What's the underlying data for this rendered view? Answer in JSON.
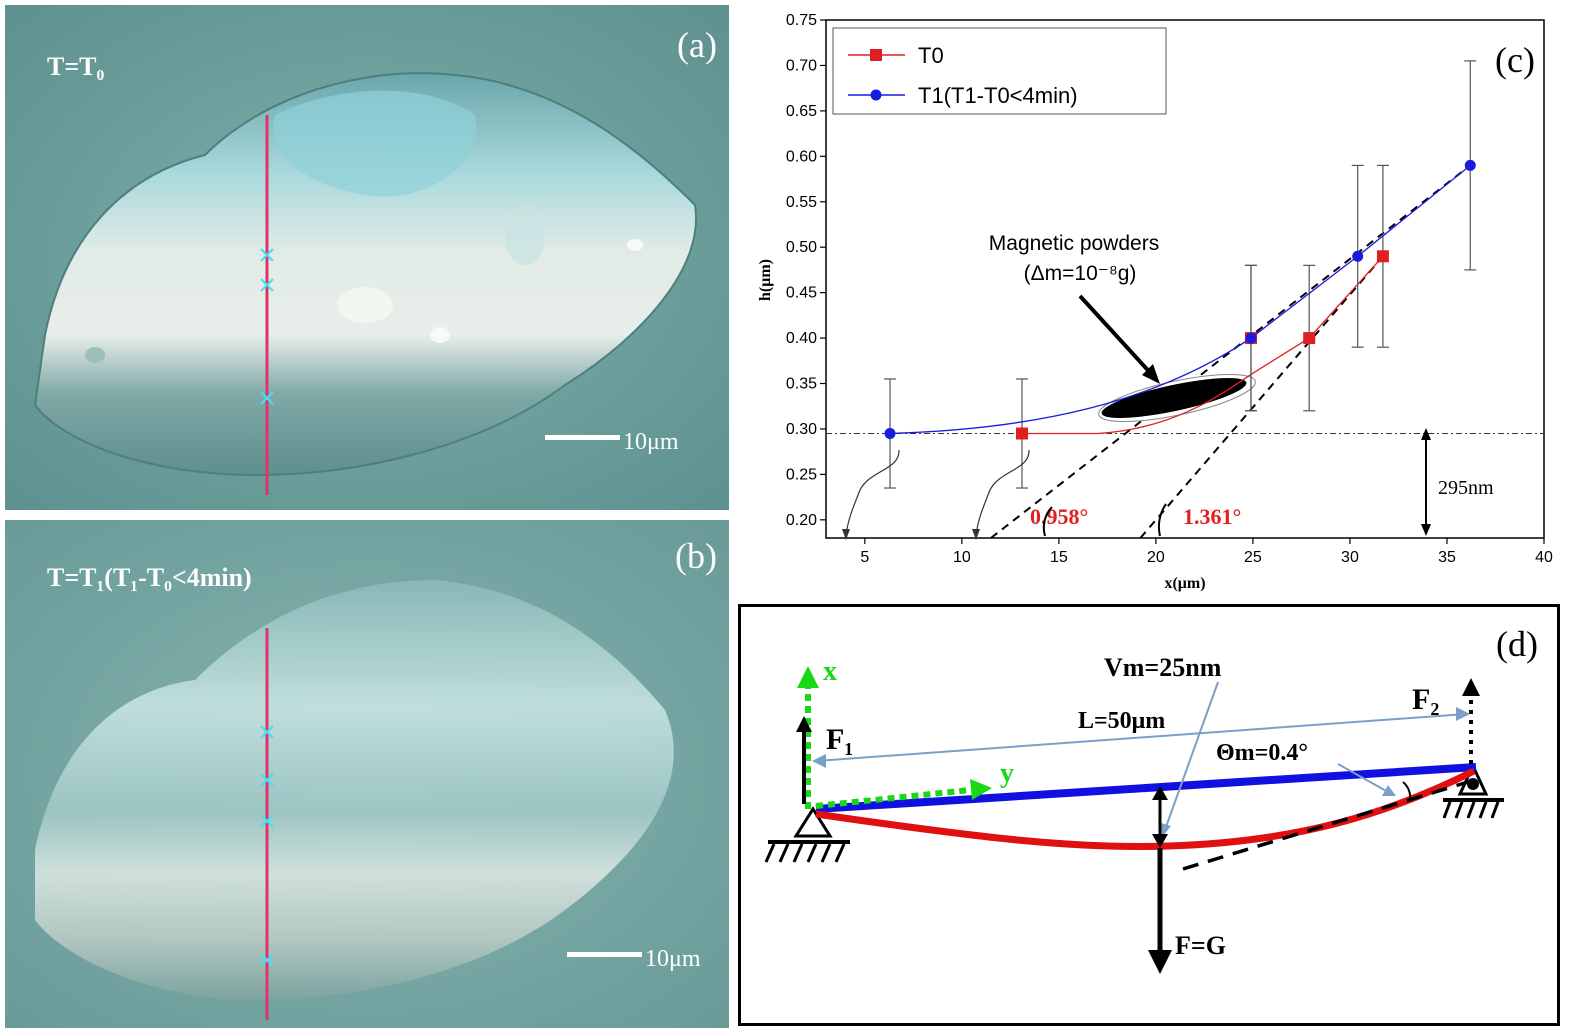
{
  "panel_a": {
    "label": "(a)",
    "time_label": "T=T₀",
    "scale_bar": "10μm"
  },
  "panel_b": {
    "label": "(b)",
    "time_label": "T=T₁(T₁-T₀<4min)",
    "scale_bar": "10μm"
  },
  "panel_c": {
    "label": "(c)",
    "annotation_powder": "Magnetic powders",
    "annotation_mass": "(Δm=10⁻⁸g)",
    "angle_1": "0.958°",
    "angle_2": "1.361°",
    "height_note": "295nm"
  },
  "panel_d": {
    "label": "(d)",
    "axis_x": "x",
    "axis_y": "y",
    "f1": "F₁",
    "f2": "F₂",
    "length": "L=50μm",
    "vm": "Vm=25nm",
    "theta": "Θm=0.4°",
    "force": "F=G"
  },
  "chart_data": {
    "type": "line",
    "xlabel": "x(μm)",
    "ylabel": "h(μm)",
    "xlim": [
      3,
      40
    ],
    "ylim": [
      0.18,
      0.75
    ],
    "xticks": [
      5,
      10,
      15,
      20,
      25,
      30,
      35,
      40
    ],
    "yticks": [
      0.2,
      0.25,
      0.3,
      0.35,
      0.4,
      0.45,
      0.5,
      0.55,
      0.6,
      0.65,
      0.7,
      0.75
    ],
    "grid": false,
    "legend_position": "top-left",
    "reference_line_y": 0.295,
    "series": [
      {
        "name": "T0",
        "color": "#e02020",
        "marker": "square",
        "x": [
          13.1,
          24.9,
          27.9,
          31.7
        ],
        "y": [
          0.295,
          0.4,
          0.4,
          0.49
        ],
        "error": [
          0.06,
          0.08,
          0.08,
          0.1
        ]
      },
      {
        "name": "T1(T1-T0<4min)",
        "color": "#1a1ae0",
        "marker": "circle",
        "x": [
          6.3,
          24.9,
          30.4,
          36.2
        ],
        "y": [
          0.295,
          0.4,
          0.49,
          0.59
        ],
        "error": [
          0.06,
          0.08,
          0.1,
          0.115
        ]
      }
    ]
  }
}
